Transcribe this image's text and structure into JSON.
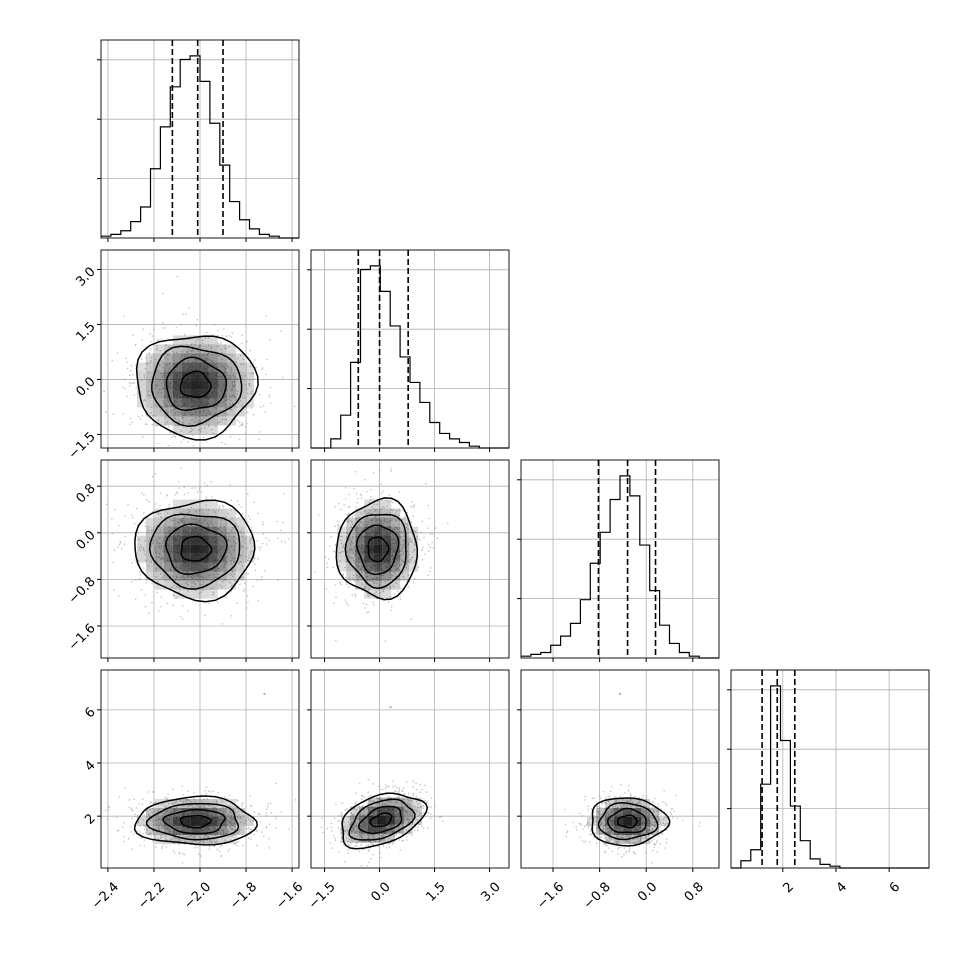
{
  "chart_data": {
    "type": "corner",
    "title": "",
    "parameters": [
      "",
      "",
      "",
      ""
    ],
    "ranges": [
      [
        -2.43,
        -1.57
      ],
      [
        -1.87,
        3.53
      ],
      [
        -2.15,
        1.25
      ],
      [
        0.05,
        7.5
      ]
    ],
    "ticks": [
      {
        "values": [
          -2.4,
          -2.2,
          -2.0,
          -1.8,
          -1.6
        ],
        "labels": [
          "−2.4",
          "−2.2",
          "−2.0",
          "−1.8",
          "−1.6"
        ]
      },
      {
        "values": [
          -1.5,
          0.0,
          1.5,
          3.0
        ],
        "labels": [
          "−1.5",
          "0.0",
          "1.5",
          "3.0"
        ]
      },
      {
        "values": [
          -1.6,
          -0.8,
          0.0,
          0.8
        ],
        "labels": [
          "−1.6",
          "−0.8",
          "0.0",
          "0.8"
        ]
      },
      {
        "values": [
          2,
          4,
          6
        ],
        "labels": [
          "2",
          "4",
          "6"
        ]
      }
    ],
    "hist_tick_fractions": [
      0.3,
      0.6,
      0.9
    ],
    "quantile_lines": [
      [
        -2.12,
        -2.01,
        -1.9
      ],
      [
        -0.58,
        0.0,
        0.78
      ],
      [
        -0.82,
        -0.32,
        0.16
      ],
      [
        1.22,
        1.79,
        2.45
      ]
    ],
    "histograms": [
      [
        -2.43,
        -1.57,
        [
          0.01,
          0.02,
          0.04,
          0.09,
          0.17,
          0.38,
          0.61,
          0.83,
          0.98,
          1.0,
          0.86,
          0.63,
          0.4,
          0.2,
          0.1,
          0.05,
          0.02,
          0.01,
          0.0,
          0.0
        ]
      ],
      [
        -1.87,
        3.53,
        [
          0.0,
          0.0,
          0.05,
          0.18,
          0.47,
          0.98,
          1.0,
          0.86,
          0.67,
          0.5,
          0.36,
          0.25,
          0.14,
          0.08,
          0.05,
          0.03,
          0.01,
          0.0,
          0.0,
          0.0
        ]
      ],
      [
        -2.15,
        1.25,
        [
          0.01,
          0.02,
          0.03,
          0.07,
          0.12,
          0.19,
          0.32,
          0.52,
          0.69,
          0.87,
          1.0,
          0.89,
          0.62,
          0.37,
          0.18,
          0.08,
          0.03,
          0.01,
          0.0,
          0.0
        ]
      ],
      [
        0.05,
        7.5,
        [
          0.0,
          0.04,
          0.1,
          0.46,
          1.0,
          0.7,
          0.34,
          0.15,
          0.05,
          0.02,
          0.01,
          0.0,
          0.0,
          0.0,
          0.0,
          0.0,
          0.0,
          0.0,
          0.0,
          0.0
        ]
      ]
    ],
    "cross_panels": [
      {
        "row": 1,
        "col": 0,
        "center": [
          -2.02,
          -0.15
        ],
        "sigma": [
          0.13,
          0.7
        ],
        "rotation": 0.0
      },
      {
        "row": 2,
        "col": 0,
        "center": [
          -2.02,
          -0.28
        ],
        "sigma": [
          0.13,
          0.42
        ],
        "rotation": 0.0
      },
      {
        "row": 2,
        "col": 1,
        "center": [
          -0.05,
          -0.28
        ],
        "sigma": [
          0.55,
          0.42
        ],
        "rotation": 0.0
      },
      {
        "row": 3,
        "col": 0,
        "center": [
          -2.02,
          1.8
        ],
        "sigma": [
          0.13,
          0.45
        ],
        "rotation": 0.0
      },
      {
        "row": 3,
        "col": 1,
        "center": [
          0.05,
          1.85
        ],
        "sigma": [
          0.6,
          0.45
        ],
        "rotation": -0.35
      },
      {
        "row": 3,
        "col": 2,
        "center": [
          -0.32,
          1.8
        ],
        "sigma": [
          0.33,
          0.45
        ],
        "rotation": 0.0
      }
    ],
    "contour_levels": [
      0.5,
      1.0,
      1.5,
      2.0
    ],
    "outliers": [
      {
        "row": 3,
        "col": 0,
        "x": -1.72,
        "y": 6.6
      },
      {
        "row": 3,
        "col": 2,
        "x": -0.45,
        "y": 6.6
      },
      {
        "row": 3,
        "col": 1,
        "x": 0.3,
        "y": 6.1
      }
    ],
    "grid": true,
    "colors": {
      "line": "#000000",
      "grid": "#b0b0b0",
      "density": "#000000",
      "scatter": "#7f7f7f"
    }
  }
}
